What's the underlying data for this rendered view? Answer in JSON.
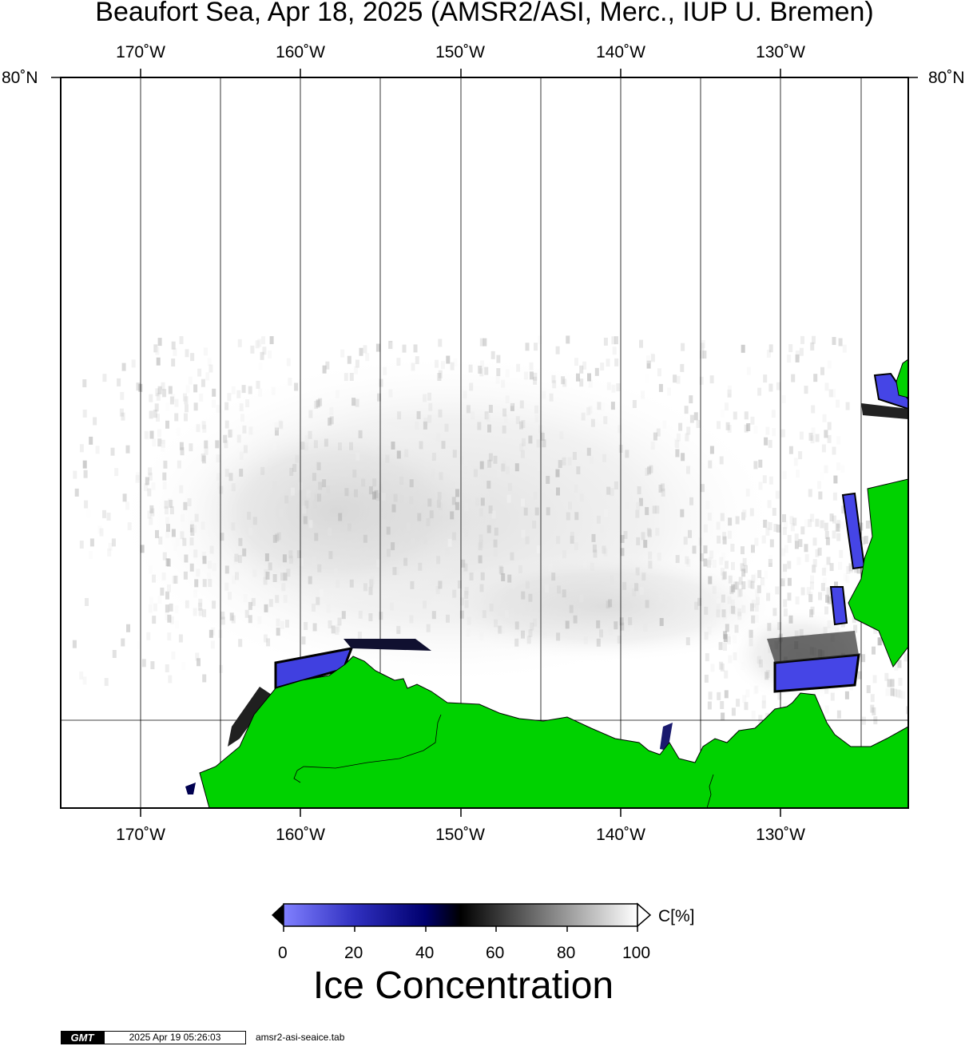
{
  "title": "Beaufort Sea, Apr 18, 2025 (AMSR2/ASI, Merc., IUP U. Bremen)",
  "longitude_labels": [
    "170˚W",
    "160˚W",
    "150˚W",
    "140˚W",
    "130˚W"
  ],
  "latitude_labels": {
    "left": "80˚N",
    "right": "80˚N"
  },
  "colorbar": {
    "ticks": [
      "0",
      "20",
      "40",
      "60",
      "80",
      "100"
    ],
    "unit": "C[%]",
    "colors": [
      "#8080ff",
      "#00006e",
      "#000000",
      "#808080",
      "#ffffff"
    ]
  },
  "legend_title": "Ice Concentration",
  "footer": {
    "logo": "GMT",
    "timestamp": "2025 Apr 19 05:26:03",
    "file": "amsr2-asi-seaice.tab"
  },
  "colors": {
    "land": "#00d200",
    "ice_low": "#5050f0",
    "background": "#ffffff"
  }
}
